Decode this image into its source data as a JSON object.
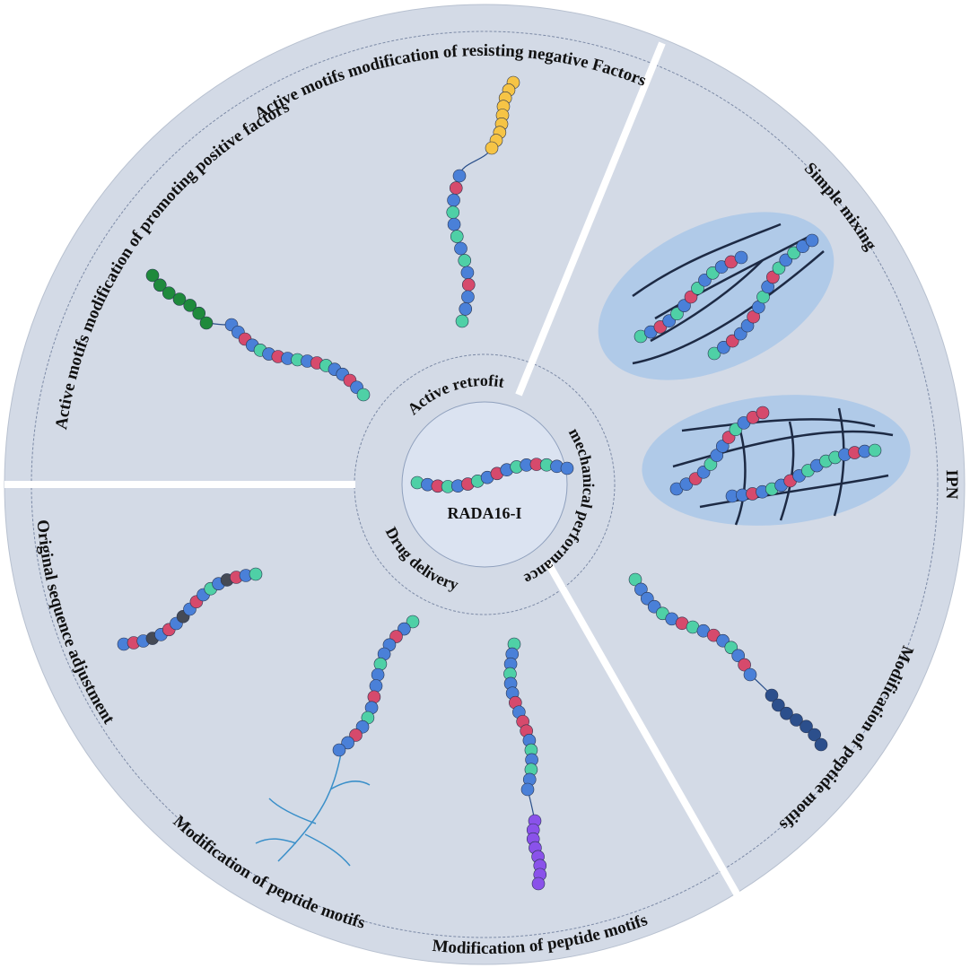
{
  "center": {
    "label": "RADA16-I"
  },
  "inner_ring": [
    "Active retrofit",
    "mechanical performance",
    "Drug delivery"
  ],
  "outer_labels": [
    "Active motifs modification of resisting negative Factors",
    "Active motifs modification of promoting positive factors",
    "Simple mixing",
    "IPN",
    "Modification of peptide motifs",
    "Original sequence adjustment",
    "Modification of peptide motifs",
    "Modification of peptide motifs"
  ]
}
